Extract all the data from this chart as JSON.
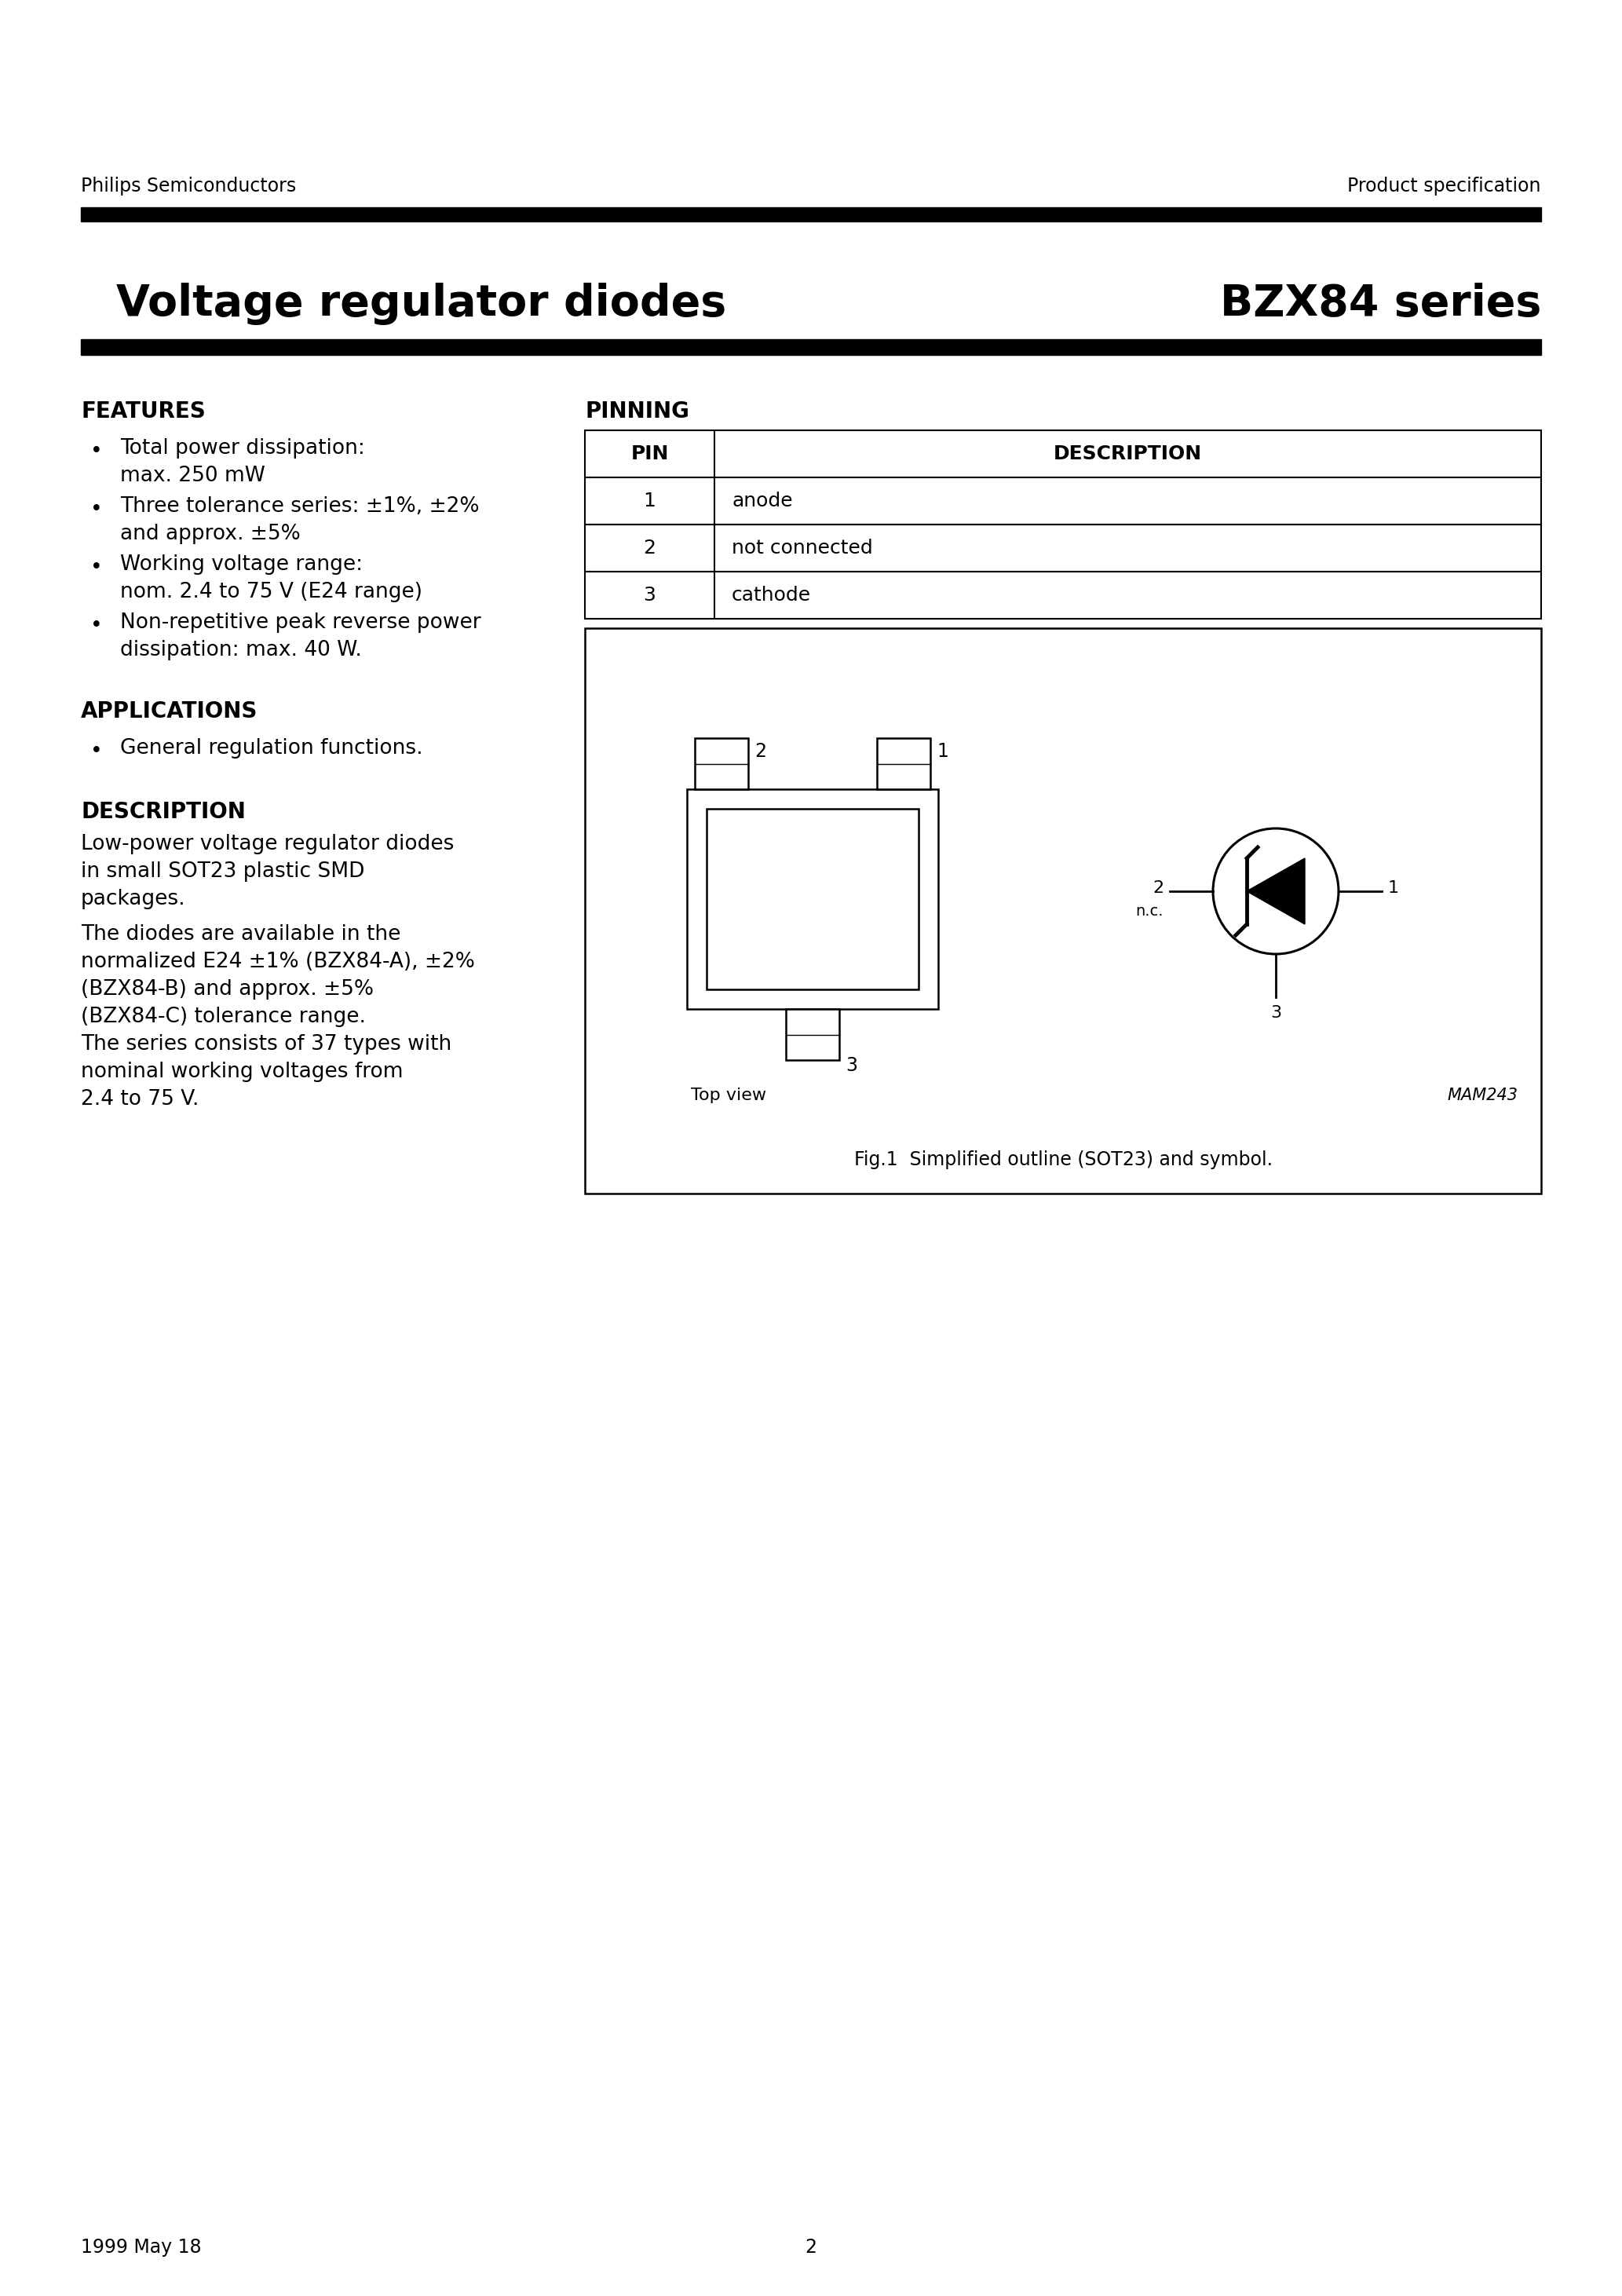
{
  "page_title_left": "Voltage regulator diodes",
  "page_title_right": "BZX84 series",
  "header_left": "Philips Semiconductors",
  "header_right": "Product specification",
  "features_title": "FEATURES",
  "features_bullets": [
    "Total power dissipation:\nmax. 250 mW",
    "Three tolerance series: ±1%, ±2%\nand approx. ±5%",
    "Working voltage range:\nnom. 2.4 to 75 V (E24 range)",
    "Non-repetitive peak reverse power\ndissipation: max. 40 W."
  ],
  "applications_title": "APPLICATIONS",
  "applications_bullets": [
    "General regulation functions."
  ],
  "description_title": "DESCRIPTION",
  "description_text1": "Low-power voltage regulator diodes\nin small SOT23 plastic SMD\npackages.",
  "description_text2": "The diodes are available in the\nnormalized E24 ±1% (BZX84-A), ±2%\n(BZX84-B) and approx. ±5%\n(BZX84-C) tolerance range.\nThe series consists of 37 types with\nnominal working voltages from\n2.4 to 75 V.",
  "pinning_title": "PINNING",
  "pin_table_headers": [
    "PIN",
    "DESCRIPTION"
  ],
  "pin_table_rows": [
    [
      "1",
      "anode"
    ],
    [
      "2",
      "not connected"
    ],
    [
      "3",
      "cathode"
    ]
  ],
  "fig_caption": "Fig.1  Simplified outline (SOT23) and symbol.",
  "mam_label": "MAM243",
  "top_view_label": "Top view",
  "footer_left": "1999 May 18",
  "footer_center": "2",
  "bg_color": "#ffffff",
  "text_color": "#000000",
  "bar_color": "#000000"
}
